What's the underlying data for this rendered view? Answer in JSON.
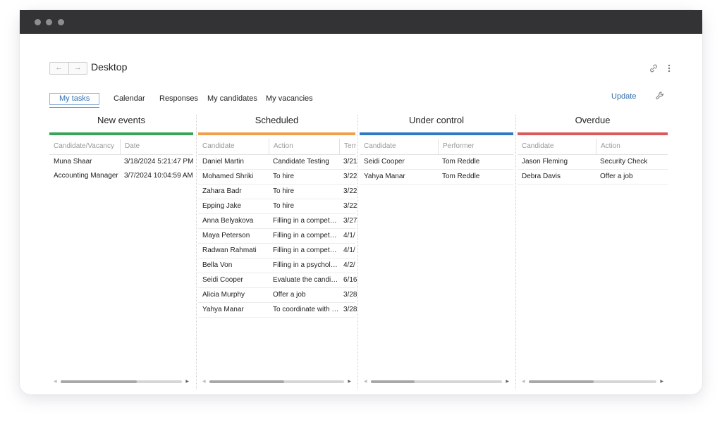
{
  "window": {
    "title": "Desktop"
  },
  "nav": {
    "back": "←",
    "forward": "→"
  },
  "tabs": [
    {
      "label": "My tasks",
      "active": true
    },
    {
      "label": "Calendar"
    },
    {
      "label": "Responses"
    },
    {
      "label": "My candidates"
    },
    {
      "label": "My vacancies"
    }
  ],
  "toolbar": {
    "update_label": "Update"
  },
  "icons": {
    "link": "link-icon",
    "more": "more-vertical-icon",
    "settings": "wrench-icon"
  },
  "colors": {
    "new_events": "#3aa35a",
    "scheduled": "#f0a04b",
    "under_control": "#2f78c4",
    "overdue": "#d85a5a",
    "accent": "#2f6fb0"
  },
  "columns": {
    "new_events": {
      "title": "New events",
      "headers": [
        "Candidate/Vacancy",
        "Date"
      ],
      "rows": [
        [
          "Muna  Shaar",
          "3/18/2024 5:21:47 PM"
        ],
        [
          "Accounting Manager",
          "3/7/2024 10:04:59 AM"
        ]
      ]
    },
    "scheduled": {
      "title": "Scheduled",
      "headers": [
        "Candidate",
        "Action",
        "Terr"
      ],
      "rows": [
        [
          "Daniel Martin",
          "Candidate Testing",
          "3/21"
        ],
        [
          "Mohamed Shriki",
          "To hire",
          "3/22"
        ],
        [
          "Zahara Badr",
          "To hire",
          "3/22"
        ],
        [
          "Epping Jake",
          "To hire",
          "3/22"
        ],
        [
          "Anna Belyakova",
          "Filling in a compet…",
          "3/27"
        ],
        [
          "Maya Peterson",
          "Filling in a compet…",
          "4/1/"
        ],
        [
          "Radwan Rahmati",
          "Filling in a compet…",
          "4/1/"
        ],
        [
          "Bella Von",
          "Filling in a psychol…",
          "4/2/"
        ],
        [
          "Seidi Cooper",
          "Evaluate the candi…",
          "6/16"
        ],
        [
          "Alicia Murphy",
          "Offer a job",
          "3/28"
        ],
        [
          "Yahya Manar",
          "To coordinate with …",
          "3/28"
        ]
      ]
    },
    "under_control": {
      "title": "Under control",
      "headers": [
        "Candidate",
        "Performer"
      ],
      "rows": [
        [
          "Seidi Cooper",
          "Tom Reddle"
        ],
        [
          "Yahya Manar",
          "Tom Reddle"
        ]
      ]
    },
    "overdue": {
      "title": "Overdue",
      "headers": [
        "Candidate",
        "Action"
      ],
      "rows": [
        [
          "Jason Fleming",
          "Security Check"
        ],
        [
          "Debra  Davis",
          "Offer a job"
        ]
      ]
    }
  }
}
